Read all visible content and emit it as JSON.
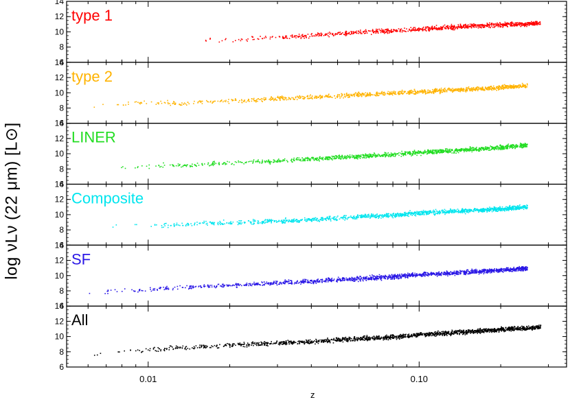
{
  "chart_data": {
    "type": "scatter",
    "xscale": "log",
    "xlim": [
      0.005,
      0.35
    ],
    "xticks": [
      "0.01",
      "0.10"
    ],
    "xtick_values": [
      0.01,
      0.1
    ],
    "xlabel": "z",
    "ylabel": "log νLν (22 μm) [L⊙]",
    "ylim": [
      6,
      14
    ],
    "yticks": [
      "6",
      "8",
      "10",
      "12",
      "14"
    ],
    "panels": [
      {
        "name": "type 1",
        "color": "#ff0000",
        "points": [
          [
            0.0135,
            8.2
          ],
          [
            0.014,
            9.4
          ],
          [
            0.018,
            8.9
          ],
          [
            0.021,
            9.0
          ],
          [
            0.024,
            9.2
          ],
          [
            0.028,
            9.3
          ],
          [
            0.03,
            9.4
          ],
          [
            0.035,
            9.4
          ],
          [
            0.04,
            9.6
          ],
          [
            0.05,
            9.8
          ],
          [
            0.06,
            10.0
          ],
          [
            0.07,
            10.1
          ],
          [
            0.08,
            10.2
          ],
          [
            0.1,
            10.4
          ],
          [
            0.12,
            10.6
          ],
          [
            0.15,
            10.8
          ],
          [
            0.2,
            11.0
          ],
          [
            0.25,
            11.1
          ],
          [
            0.28,
            11.2
          ]
        ]
      },
      {
        "name": "type 2",
        "color": "#ffb300",
        "points": [
          [
            0.0058,
            8.2
          ],
          [
            0.007,
            8.4
          ],
          [
            0.008,
            8.6
          ],
          [
            0.009,
            8.8
          ],
          [
            0.011,
            8.8
          ],
          [
            0.013,
            8.6
          ],
          [
            0.015,
            8.8
          ],
          [
            0.02,
            9.0
          ],
          [
            0.03,
            9.3
          ],
          [
            0.04,
            9.5
          ],
          [
            0.06,
            9.8
          ],
          [
            0.08,
            10.0
          ],
          [
            0.1,
            10.2
          ],
          [
            0.15,
            10.5
          ],
          [
            0.2,
            10.8
          ],
          [
            0.25,
            11.0
          ]
        ]
      },
      {
        "name": "LINER",
        "color": "#22dd22",
        "points": [
          [
            0.007,
            8.0
          ],
          [
            0.009,
            8.3
          ],
          [
            0.011,
            8.5
          ],
          [
            0.013,
            8.5
          ],
          [
            0.015,
            8.6
          ],
          [
            0.02,
            8.8
          ],
          [
            0.03,
            9.1
          ],
          [
            0.04,
            9.4
          ],
          [
            0.06,
            9.7
          ],
          [
            0.08,
            10.0
          ],
          [
            0.1,
            10.2
          ],
          [
            0.15,
            10.6
          ],
          [
            0.2,
            10.9
          ],
          [
            0.25,
            11.2
          ]
        ]
      },
      {
        "name": "Composite",
        "color": "#00e5ee",
        "points": [
          [
            0.007,
            8.5
          ],
          [
            0.009,
            8.6
          ],
          [
            0.011,
            8.7
          ],
          [
            0.013,
            8.8
          ],
          [
            0.015,
            8.9
          ],
          [
            0.02,
            9.0
          ],
          [
            0.03,
            9.2
          ],
          [
            0.04,
            9.4
          ],
          [
            0.06,
            9.8
          ],
          [
            0.08,
            10.0
          ],
          [
            0.1,
            10.3
          ],
          [
            0.15,
            10.6
          ],
          [
            0.2,
            10.8
          ],
          [
            0.25,
            11.1
          ]
        ]
      },
      {
        "name": "SF",
        "color": "#2a17e6",
        "points": [
          [
            0.0058,
            7.6
          ],
          [
            0.007,
            8.0
          ],
          [
            0.009,
            8.2
          ],
          [
            0.011,
            8.3
          ],
          [
            0.013,
            8.5
          ],
          [
            0.015,
            8.6
          ],
          [
            0.02,
            8.8
          ],
          [
            0.03,
            9.1
          ],
          [
            0.04,
            9.3
          ],
          [
            0.06,
            9.7
          ],
          [
            0.08,
            9.9
          ],
          [
            0.1,
            10.2
          ],
          [
            0.15,
            10.5
          ],
          [
            0.2,
            10.8
          ],
          [
            0.25,
            11.0
          ]
        ]
      },
      {
        "name": "All",
        "color": "#000000",
        "points": [
          [
            0.0058,
            7.5
          ],
          [
            0.007,
            8.0
          ],
          [
            0.009,
            8.2
          ],
          [
            0.011,
            8.4
          ],
          [
            0.013,
            8.6
          ],
          [
            0.015,
            8.7
          ],
          [
            0.02,
            8.9
          ],
          [
            0.03,
            9.2
          ],
          [
            0.04,
            9.4
          ],
          [
            0.06,
            9.8
          ],
          [
            0.08,
            10.0
          ],
          [
            0.1,
            10.3
          ],
          [
            0.15,
            10.7
          ],
          [
            0.2,
            11.0
          ],
          [
            0.25,
            11.2
          ],
          [
            0.28,
            11.3
          ]
        ]
      }
    ]
  }
}
